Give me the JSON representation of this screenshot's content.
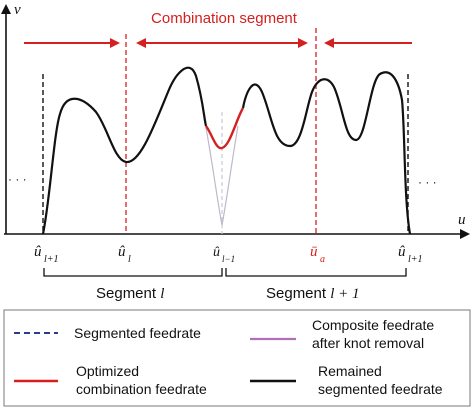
{
  "axes": {
    "y_label": "v",
    "x_label": "u"
  },
  "combination_label": "Combination segment",
  "ticks": [
    {
      "base": "û",
      "sub": "l+1"
    },
    {
      "base": "û",
      "sub": "l"
    },
    {
      "base": "û",
      "sub": "l−1"
    },
    {
      "base": "ū",
      "sub": "a"
    },
    {
      "base": "û",
      "sub": "l+1"
    }
  ],
  "ellipsis_left": "· · ·",
  "ellipsis_right": "· · ·",
  "segment_labels": {
    "left": {
      "text": "Segment ",
      "var": "l"
    },
    "right": {
      "text": "Segment ",
      "var": "l + 1"
    }
  },
  "legend": {
    "items": [
      {
        "label_lines": [
          "Segmented feedrate"
        ],
        "color": "#2a3a8c",
        "style": "dashed"
      },
      {
        "label_lines": [
          "Composite feedrate",
          "after knot removal"
        ],
        "color": "#b070b8",
        "style": "solid"
      },
      {
        "label_lines": [
          "Optimized",
          "combination feedrate"
        ],
        "color": "#d42020",
        "style": "solid"
      },
      {
        "label_lines": [
          "Remained",
          "segmented feedrate"
        ],
        "color": "#111111",
        "style": "solid"
      }
    ]
  },
  "colors": {
    "red": "#d42020",
    "black": "#111111",
    "gray": "#b8b8c8"
  }
}
